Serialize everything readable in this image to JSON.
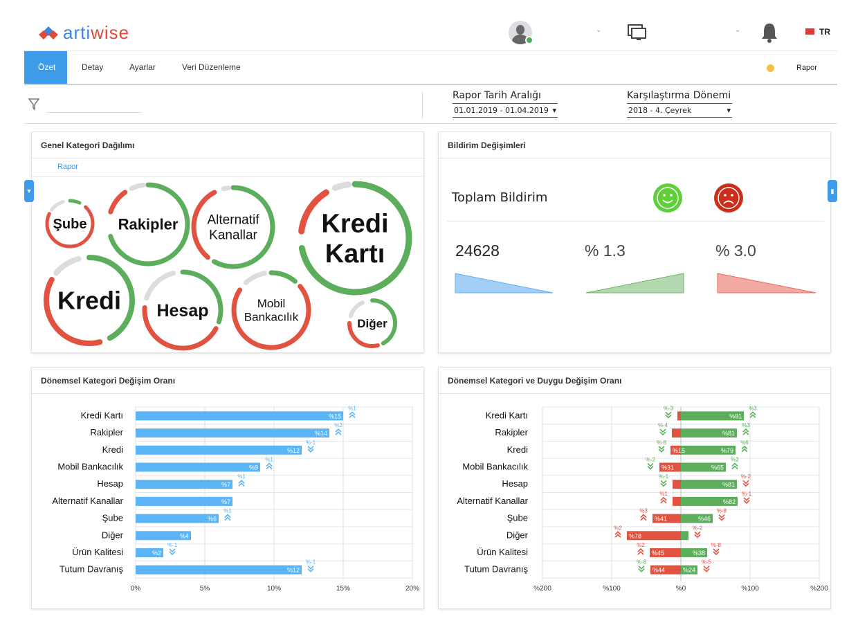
{
  "header": {
    "logo": "artiwise",
    "logo_a": "arti",
    "logo_b": "wise",
    "language": "TR",
    "brand_colors": {
      "blue": "#3d86e0",
      "red": "#e04a3a"
    }
  },
  "nav": {
    "tabs": [
      {
        "label": "Özet",
        "active": true
      },
      {
        "label": "Detay"
      },
      {
        "label": "Ayarlar"
      },
      {
        "label": "Veri Düzenleme"
      }
    ],
    "status_label": "Rapor",
    "status_color": "#f5c242"
  },
  "filters": {
    "date_range_label": "Rapor Tarih Aralığı",
    "date_range_value": "01.01.2019 - 01.04.2019",
    "compare_label": "Karşılaştırma Dönemi",
    "compare_value": "2018  -  4. Çeyrek"
  },
  "category_panel": {
    "title": "Genel Kategori Dağılımı",
    "link": "Rapor",
    "rings": [
      {
        "label": [
          "Şube"
        ],
        "segments": [
          [
            "green",
            0.0,
            0.07
          ],
          [
            "red",
            0.12,
            0.82
          ],
          [
            "gray",
            0.85,
            0.95
          ]
        ]
      },
      {
        "label": [
          "Rakipler"
        ],
        "segments": [
          [
            "green",
            0.0,
            0.7
          ],
          [
            "red",
            0.8,
            0.9
          ],
          [
            "gray",
            0.93,
            0.98
          ]
        ]
      },
      {
        "label": [
          "Alternatif",
          "Kanallar"
        ],
        "segments": [
          [
            "green",
            0.0,
            0.58
          ],
          [
            "red",
            0.61,
            0.92
          ],
          [
            "gray",
            0.96,
            0.98
          ]
        ]
      },
      {
        "label": [
          "Kredi",
          "Kartı"
        ],
        "segments": [
          [
            "green",
            0.0,
            0.72
          ],
          [
            "red",
            0.77,
            0.91
          ],
          [
            "gray",
            0.94,
            0.98
          ]
        ]
      },
      {
        "label": [
          "Kredi"
        ],
        "segments": [
          [
            "green",
            0.0,
            0.42
          ],
          [
            "red",
            0.46,
            0.83
          ],
          [
            "gray",
            0.86,
            0.96
          ]
        ]
      },
      {
        "label": [
          "Hesap"
        ],
        "segments": [
          [
            "green",
            0.0,
            0.3
          ],
          [
            "red",
            0.33,
            0.76
          ],
          [
            "gray",
            0.8,
            0.96
          ]
        ]
      },
      {
        "label": [
          "Mobil",
          "Bankacılık"
        ],
        "segments": [
          [
            "green",
            0.0,
            0.11
          ],
          [
            "red",
            0.14,
            0.84
          ],
          [
            "gray",
            0.88,
            0.97
          ]
        ]
      },
      {
        "label": [
          "Diğer"
        ],
        "segments": [
          [
            "green",
            0.0,
            0.42
          ],
          [
            "red",
            0.46,
            0.75
          ],
          [
            "gray",
            0.8,
            0.93
          ]
        ]
      }
    ]
  },
  "notification_panel": {
    "title": "Bildirim Değişimleri",
    "total_label": "Toplam Bildirim",
    "total": "24628",
    "positive": "% 1.3",
    "negative": "%  3.0"
  },
  "chart_data": [
    {
      "type": "bar",
      "title": "Dönemsel Kategori Değişim Oranı",
      "orientation": "horizontal",
      "categories": [
        "Kredi Kartı",
        "Rakipler",
        "Kredi",
        "Mobil Bankacılık",
        "Hesap",
        "Alternatif Kanallar",
        "Şube",
        "Diğer",
        "Ürün Kalitesi",
        "Tutum Davranış"
      ],
      "values": [
        15,
        14,
        12,
        9,
        7,
        7,
        6,
        4,
        2,
        12
      ],
      "changes": [
        1,
        2,
        -1,
        1,
        1,
        null,
        1,
        null,
        -1,
        -1
      ],
      "xlim": [
        0,
        20
      ],
      "xticks": [
        "0%",
        "5%",
        "10%",
        "15%",
        "20%"
      ],
      "grid": true,
      "color": "#5bb4f5"
    },
    {
      "type": "bar",
      "title": "Dönemsel Kategori ve Duygu Değişim Oranı",
      "orientation": "horizontal-diverging",
      "categories": [
        "Kredi Kartı",
        "Rakipler",
        "Kredi",
        "Mobil Bankacılık",
        "Hesap",
        "Alternatif Kanallar",
        "Şube",
        "Diğer",
        "Ürün Kalitesi",
        "Tutum Davranış"
      ],
      "series": [
        {
          "values": [
            5,
            13,
            15,
            31,
            12,
            12,
            41,
            78,
            45,
            44
          ],
          "labels": [
            null,
            null,
            "%15",
            "%31",
            null,
            null,
            "%41",
            "%78",
            "%45",
            "%44"
          ],
          "changes": [
            -3,
            -4,
            -8,
            -2,
            -1,
            1,
            3,
            2,
            2,
            -8
          ],
          "color": "#e25241"
        },
        {
          "values": [
            91,
            81,
            79,
            65,
            81,
            82,
            46,
            11,
            38,
            24
          ],
          "labels": [
            "%91",
            "%81",
            "%79",
            "%65",
            "%81",
            "%82",
            "%46",
            null,
            "%38",
            "%24"
          ],
          "changes": [
            3,
            3,
            6,
            2,
            -2,
            -1,
            -8,
            -2,
            -8,
            -5
          ],
          "color": "#5cae5c"
        }
      ],
      "xlim": [
        -200,
        200
      ],
      "xticks": [
        "%200",
        "%100",
        "%0",
        "%100",
        "%200"
      ],
      "grid": true
    }
  ]
}
